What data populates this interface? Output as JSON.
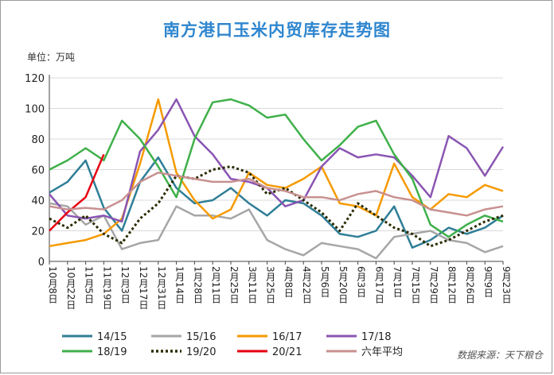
{
  "header": {
    "title": "南方港口玉米内贸库存走势图",
    "unit": "单位：万吨",
    "source": "数据来源：天下粮仓"
  },
  "chart_data": {
    "type": "line",
    "title": "南方港口玉米内贸库存走势图",
    "ylabel": "万吨",
    "ylim": [
      0,
      120
    ],
    "yticks": [
      0,
      20,
      40,
      60,
      80,
      100,
      120
    ],
    "grid": true,
    "legend_position": "bottom",
    "x": [
      "10月8日",
      "10月22日",
      "11月5日",
      "11月19日",
      "12月3日",
      "12月17日",
      "12月31日",
      "1月14日",
      "1月28日",
      "2月11日",
      "2月25日",
      "3月11日",
      "3月25日",
      "4月8日",
      "4月22日",
      "5月6日",
      "5月20日",
      "6月3日",
      "6月17日",
      "7月1日",
      "7月15日",
      "7月29日",
      "8月12日",
      "8月26日",
      "9月9日",
      "9月23日"
    ],
    "series": [
      {
        "name": "14/15",
        "color": "#2f7e96",
        "dashed": false,
        "values": [
          45,
          52,
          66,
          35,
          20,
          52,
          68,
          48,
          38,
          40,
          48,
          38,
          30,
          40,
          38,
          30,
          18,
          16,
          20,
          36,
          9,
          14,
          22,
          18,
          22,
          30
        ]
      },
      {
        "name": "15/16",
        "color": "#a6a6a6",
        "dashed": false,
        "values": [
          38,
          36,
          24,
          30,
          8,
          12,
          14,
          36,
          30,
          30,
          28,
          34,
          14,
          8,
          4,
          12,
          10,
          8,
          2,
          16,
          18,
          20,
          14,
          12,
          6,
          10
        ]
      },
      {
        "name": "16/17",
        "color": "#f59a00",
        "dashed": false,
        "values": [
          10,
          12,
          14,
          18,
          28,
          64,
          106,
          58,
          40,
          28,
          34,
          58,
          50,
          48,
          54,
          62,
          38,
          36,
          30,
          64,
          42,
          34,
          44,
          42,
          50,
          46
        ]
      },
      {
        "name": "17/18",
        "color": "#8a55b2",
        "dashed": false,
        "values": [
          44,
          30,
          28,
          30,
          26,
          72,
          86,
          106,
          82,
          70,
          54,
          52,
          48,
          36,
          40,
          62,
          74,
          68,
          70,
          68,
          56,
          42,
          82,
          74,
          56,
          75
        ]
      },
      {
        "name": "18/19",
        "color": "#3fb04a",
        "dashed": false,
        "values": [
          60,
          66,
          74,
          66,
          92,
          80,
          62,
          42,
          80,
          104,
          106,
          102,
          94,
          96,
          80,
          66,
          76,
          88,
          92,
          70,
          54,
          24,
          16,
          24,
          30,
          26
        ]
      },
      {
        "name": "19/20",
        "color": "#2b2b00",
        "dashed": true,
        "values": [
          28,
          22,
          30,
          18,
          12,
          28,
          38,
          56,
          54,
          60,
          62,
          58,
          44,
          48,
          40,
          32,
          20,
          38,
          30,
          22,
          18,
          10,
          14,
          20,
          26,
          30
        ]
      },
      {
        "name": "20/21",
        "color": "#e60012",
        "dashed": false,
        "values": [
          20,
          32,
          42,
          70,
          null,
          null,
          null,
          null,
          null,
          null,
          null,
          null,
          null,
          null,
          null,
          null,
          null,
          null,
          null,
          null,
          null,
          null,
          null,
          null,
          null,
          null
        ]
      },
      {
        "name": "六年平均",
        "color": "#c89090",
        "dashed": false,
        "values": [
          36,
          34,
          35,
          34,
          40,
          52,
          58,
          56,
          54,
          52,
          52,
          54,
          48,
          46,
          42,
          42,
          40,
          44,
          46,
          42,
          40,
          34,
          32,
          30,
          34,
          36
        ]
      }
    ]
  }
}
